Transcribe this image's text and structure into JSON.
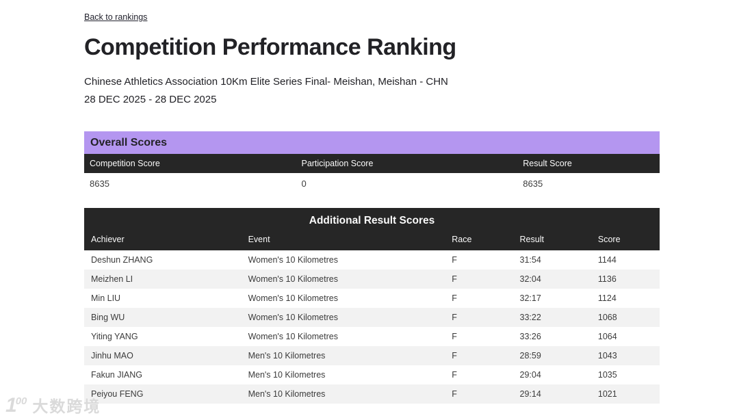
{
  "page": {
    "back_link": "Back to rankings",
    "title": "Competition Performance Ranking",
    "subtitle": "Chinese Athletics Association 10Km Elite Series Final- Meishan, Meishan - CHN",
    "date_range": "28 DEC 2025 - 28 DEC 2025"
  },
  "colors": {
    "accent_purple": "#b496f0",
    "header_dark": "#262626",
    "row_alt_gray": "#f2f2f2"
  },
  "overall_scores": {
    "title": "Overall Scores",
    "columns": [
      "Competition Score",
      "Participation Score",
      "Result Score"
    ],
    "values": [
      "8635",
      "0",
      "8635"
    ]
  },
  "additional_result_scores": {
    "title": "Additional Result Scores",
    "columns": [
      "Achiever",
      "Event",
      "Race",
      "Result",
      "Score"
    ],
    "rows": [
      {
        "achiever": "Deshun ZHANG",
        "event": "Women's 10 Kilometres",
        "race": "F",
        "result": "31:54",
        "score": "1144"
      },
      {
        "achiever": "Meizhen LI",
        "event": "Women's 10 Kilometres",
        "race": "F",
        "result": "32:04",
        "score": "1136"
      },
      {
        "achiever": "Min LIU",
        "event": "Women's 10 Kilometres",
        "race": "F",
        "result": "32:17",
        "score": "1124"
      },
      {
        "achiever": "Bing WU",
        "event": "Women's 10 Kilometres",
        "race": "F",
        "result": "33:22",
        "score": "1068"
      },
      {
        "achiever": "Yiting YANG",
        "event": "Women's 10 Kilometres",
        "race": "F",
        "result": "33:26",
        "score": "1064"
      },
      {
        "achiever": "Jinhu MAO",
        "event": "Men's 10 Kilometres",
        "race": "F",
        "result": "28:59",
        "score": "1043"
      },
      {
        "achiever": "Fakun JIANG",
        "event": "Men's 10 Kilometres",
        "race": "F",
        "result": "29:04",
        "score": "1035"
      },
      {
        "achiever": "Peiyou FENG",
        "event": "Men's 10 Kilometres",
        "race": "F",
        "result": "29:14",
        "score": "1021"
      }
    ]
  },
  "watermark": {
    "logo_digit": "1",
    "logo_sup": "00",
    "text": "大数跨境"
  }
}
